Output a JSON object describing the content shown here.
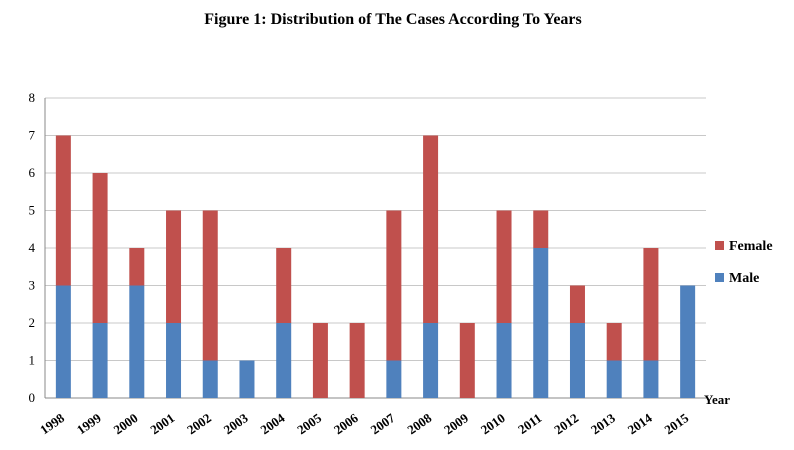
{
  "chart_data": {
    "type": "bar",
    "stacked": true,
    "title": "Figure 1: Distribution of The Cases According To Years",
    "xlabel": "Year",
    "ylabel": "",
    "ylim": [
      0,
      8
    ],
    "yticks": [
      0,
      1,
      2,
      3,
      4,
      5,
      6,
      7,
      8
    ],
    "grid": true,
    "legend_position": "right",
    "categories": [
      "1998",
      "1999",
      "2000",
      "2001",
      "2002",
      "2003",
      "2004",
      "2005",
      "2006",
      "2007",
      "2008",
      "2009",
      "2010",
      "2011",
      "2012",
      "2013",
      "2014",
      "2015"
    ],
    "series": [
      {
        "name": "Male",
        "color": "#4f81bd",
        "values": [
          3,
          2,
          3,
          2,
          1,
          1,
          2,
          0,
          0,
          1,
          2,
          0,
          2,
          4,
          2,
          1,
          1,
          3
        ]
      },
      {
        "name": "Female",
        "color": "#c0504d",
        "values": [
          4,
          4,
          1,
          3,
          4,
          0,
          2,
          2,
          2,
          4,
          5,
          2,
          3,
          1,
          1,
          1,
          3,
          0
        ]
      }
    ]
  }
}
